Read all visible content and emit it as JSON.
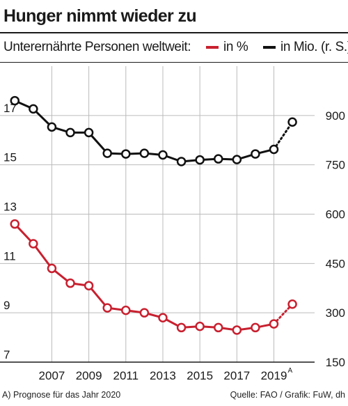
{
  "header": {
    "title": "Hunger nimmt wieder zu"
  },
  "footer": {
    "footnote": "A) Prognose für das Jahr 2020",
    "source": "Quelle: FAO / Grafik: FuW, dh"
  },
  "colors": {
    "percent_series": "#c8202f",
    "millions_series": "#111111",
    "grid": "#bbbbbb"
  },
  "chart_data": {
    "type": "line",
    "title": "Unterernährte Personen weltweit:",
    "legend": {
      "position": "top-right",
      "entries": [
        "in %",
        "in Mio. (r. S.)"
      ]
    },
    "grid": true,
    "x": [
      2005,
      2006,
      2007,
      2008,
      2009,
      2010,
      2011,
      2012,
      2013,
      2014,
      2015,
      2016,
      2017,
      2018,
      2019,
      2020
    ],
    "xlim": [
      2004.2,
      2021.2
    ],
    "x_ticks": [
      {
        "value": 2007,
        "label": "2007"
      },
      {
        "value": 2009,
        "label": "2009"
      },
      {
        "value": 2011,
        "label": "2011"
      },
      {
        "value": 2013,
        "label": "2013"
      },
      {
        "value": 2015,
        "label": "2015"
      },
      {
        "value": 2017,
        "label": "2017"
      },
      {
        "value": 2019,
        "label": "2019"
      }
    ],
    "x_tick_superscript": {
      "value": 2019,
      "label": "A"
    },
    "y_left": {
      "ylim": [
        7,
        19
      ],
      "ticks": [
        7,
        9,
        11,
        13,
        15,
        17
      ]
    },
    "y_right": {
      "ylim": [
        150,
        1050
      ],
      "ticks": [
        150,
        300,
        450,
        600,
        750,
        900
      ]
    },
    "series": [
      {
        "name": "in %",
        "axis": "left",
        "color": "#c8202f",
        "values": [
          12.6,
          11.8,
          10.8,
          10.2,
          10.1,
          9.2,
          9.1,
          9.0,
          8.8,
          8.4,
          8.45,
          8.4,
          8.3,
          8.4,
          8.55,
          9.35
        ],
        "forecast_from_index": 14
      },
      {
        "name": "in Mio. (r. S.)",
        "axis": "right",
        "color": "#111111",
        "values": [
          945,
          920,
          865,
          848,
          848,
          785,
          783,
          785,
          780,
          760,
          765,
          768,
          766,
          783,
          797,
          880
        ],
        "forecast_from_index": 14
      }
    ]
  }
}
